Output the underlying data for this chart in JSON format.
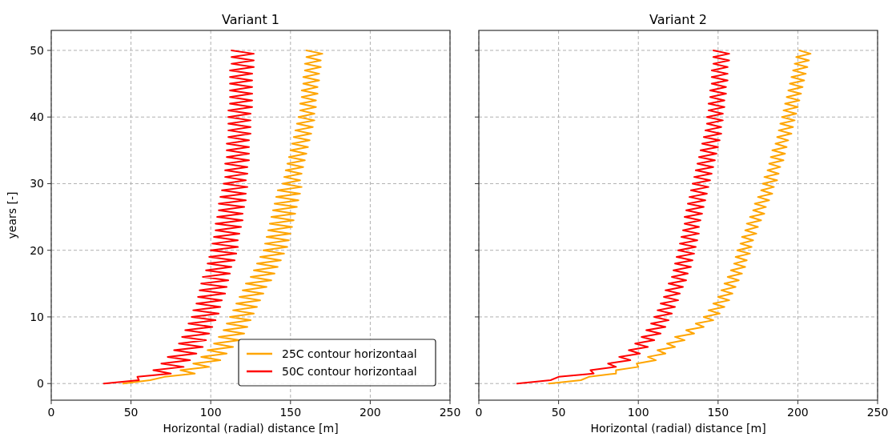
{
  "chart_data": [
    {
      "type": "line",
      "title": "Variant 1",
      "xlabel": "Horizontal (radial) distance [m]",
      "ylabel": "years [-]",
      "xlim": [
        0,
        250
      ],
      "xticks": [
        0,
        50,
        100,
        150,
        200,
        250
      ],
      "ylim": [
        -2.5,
        53
      ],
      "yticks": [
        0,
        10,
        20,
        30,
        40,
        50
      ],
      "grid": true,
      "legend": "bottom right",
      "series": [
        {
          "name": "25C contour horizontaal",
          "color": "#ffa500",
          "x": [
            45,
            62,
            71,
            90,
            81,
            99,
            89,
            106,
            94,
            110,
            98,
            114,
            102,
            118,
            105,
            121,
            108,
            123,
            110,
            125,
            112,
            127,
            114,
            129,
            116,
            131,
            118,
            133,
            120,
            135,
            122,
            138,
            125,
            140,
            127,
            142,
            129,
            144,
            131,
            146,
            133,
            148,
            134,
            149,
            135,
            150,
            136,
            151,
            137,
            152,
            138,
            153,
            139,
            154,
            140,
            155,
            141,
            156,
            142,
            157,
            145,
            156,
            146,
            157,
            147,
            158,
            148,
            159,
            149,
            160,
            150,
            161,
            151,
            162,
            152,
            163,
            153,
            164,
            154,
            165,
            155,
            165,
            156,
            166,
            156,
            166,
            157,
            167,
            157,
            167,
            158,
            168,
            158,
            168,
            159,
            169,
            159,
            169,
            160,
            170,
            160
          ],
          "values": [
            0,
            0.5,
            1,
            1.5,
            2,
            2.5,
            3,
            3.5,
            4,
            4.5,
            5,
            5.5,
            6,
            6.5,
            7,
            7.5,
            8,
            8.5,
            9,
            9.5,
            10,
            10.5,
            11,
            11.5,
            12,
            12.5,
            13,
            13.5,
            14,
            14.5,
            15,
            15.5,
            16,
            16.5,
            17,
            17.5,
            18,
            18.5,
            19,
            19.5,
            20,
            20.5,
            21,
            21.5,
            22,
            22.5,
            23,
            23.5,
            24,
            24.5,
            25,
            25.5,
            26,
            26.5,
            27,
            27.5,
            28,
            28.5,
            29,
            29.5,
            30,
            30.5,
            31,
            31.5,
            32,
            32.5,
            33,
            33.5,
            34,
            34.5,
            35,
            35.5,
            36,
            36.5,
            37,
            37.5,
            38,
            38.5,
            39,
            39.5,
            40,
            40.5,
            41,
            41.5,
            42,
            42.5,
            43,
            43.5,
            44,
            44.5,
            45,
            45.5,
            46,
            46.5,
            47,
            47.5,
            48,
            48.5,
            49,
            49.5,
            50
          ]
        },
        {
          "name": "50C contour horizontaal",
          "color": "#ff0000",
          "x": [
            33,
            55,
            54,
            75,
            64,
            83,
            69,
            87,
            73,
            91,
            77,
            95,
            80,
            97,
            82,
            99,
            84,
            101,
            86,
            103,
            88,
            105,
            89,
            106,
            91,
            107,
            92,
            109,
            93,
            110,
            94,
            111,
            95,
            112,
            97,
            113,
            98,
            115,
            99,
            116,
            100,
            117,
            101,
            117,
            102,
            118,
            103,
            119,
            103,
            120,
            104,
            120,
            105,
            121,
            105,
            122,
            106,
            122,
            107,
            123,
            108,
            122,
            109,
            123,
            109,
            123,
            109,
            124,
            110,
            124,
            110,
            124,
            110,
            124,
            111,
            125,
            111,
            125,
            111,
            125,
            111,
            125,
            111,
            126,
            112,
            126,
            112,
            126,
            112,
            126,
            112,
            126,
            112,
            126,
            112,
            127,
            113,
            127,
            113,
            127,
            113
          ],
          "values": [
            0,
            0.5,
            1,
            1.5,
            2,
            2.5,
            3,
            3.5,
            4,
            4.5,
            5,
            5.5,
            6,
            6.5,
            7,
            7.5,
            8,
            8.5,
            9,
            9.5,
            10,
            10.5,
            11,
            11.5,
            12,
            12.5,
            13,
            13.5,
            14,
            14.5,
            15,
            15.5,
            16,
            16.5,
            17,
            17.5,
            18,
            18.5,
            19,
            19.5,
            20,
            20.5,
            21,
            21.5,
            22,
            22.5,
            23,
            23.5,
            24,
            24.5,
            25,
            25.5,
            26,
            26.5,
            27,
            27.5,
            28,
            28.5,
            29,
            29.5,
            30,
            30.5,
            31,
            31.5,
            32,
            32.5,
            33,
            33.5,
            34,
            34.5,
            35,
            35.5,
            36,
            36.5,
            37,
            37.5,
            38,
            38.5,
            39,
            39.5,
            40,
            40.5,
            41,
            41.5,
            42,
            42.5,
            43,
            43.5,
            44,
            44.5,
            45,
            45.5,
            46,
            46.5,
            47,
            47.5,
            48,
            48.5,
            49,
            49.5,
            50
          ]
        }
      ]
    },
    {
      "type": "line",
      "title": "Variant 2",
      "xlabel": "Horizontal (radial) distance [m]",
      "xlim": [
        0,
        250
      ],
      "xticks": [
        0,
        50,
        100,
        150,
        200,
        250
      ],
      "ylim": [
        -2.5,
        53
      ],
      "yticks": [
        0,
        10,
        20,
        30,
        40,
        50
      ],
      "grid": true,
      "tick_labels": "x",
      "series": [
        {
          "color": "#ffa500",
          "x": [
            44,
            64,
            69,
            86,
            86,
            100,
            99,
            111,
            106,
            117,
            112,
            123,
            118,
            129,
            123,
            135,
            130,
            141,
            136,
            147,
            141,
            151,
            144,
            154,
            147,
            157,
            150,
            159,
            152,
            161,
            154,
            163,
            156,
            165,
            158,
            167,
            160,
            168,
            161,
            170,
            162,
            171,
            164,
            172,
            165,
            174,
            167,
            175,
            168,
            177,
            170,
            179,
            172,
            180,
            173,
            182,
            175,
            184,
            177,
            185,
            178,
            187,
            179,
            188,
            181,
            189,
            182,
            191,
            183,
            192,
            184,
            193,
            186,
            194,
            187,
            196,
            188,
            197,
            189,
            198,
            190,
            199,
            191,
            200,
            192,
            201,
            193,
            202,
            194,
            203,
            195,
            204,
            196,
            205,
            197,
            206,
            198,
            207,
            199,
            208,
            201
          ],
          "values": [
            0,
            0.5,
            1,
            1.5,
            2,
            2.5,
            3,
            3.5,
            4,
            4.5,
            5,
            5.5,
            6,
            6.5,
            7,
            7.5,
            8,
            8.5,
            9,
            9.5,
            10,
            10.5,
            11,
            11.5,
            12,
            12.5,
            13,
            13.5,
            14,
            14.5,
            15,
            15.5,
            16,
            16.5,
            17,
            17.5,
            18,
            18.5,
            19,
            19.5,
            20,
            20.5,
            21,
            21.5,
            22,
            22.5,
            23,
            23.5,
            24,
            24.5,
            25,
            25.5,
            26,
            26.5,
            27,
            27.5,
            28,
            28.5,
            29,
            29.5,
            30,
            30.5,
            31,
            31.5,
            32,
            32.5,
            33,
            33.5,
            34,
            34.5,
            35,
            35.5,
            36,
            36.5,
            37,
            37.5,
            38,
            38.5,
            39,
            39.5,
            40,
            40.5,
            41,
            41.5,
            42,
            42.5,
            43,
            43.5,
            44,
            44.5,
            45,
            45.5,
            46,
            46.5,
            47,
            47.5,
            48,
            48.5,
            49,
            49.5,
            50
          ]
        },
        {
          "color": "#ff0000",
          "x": [
            24,
            45,
            50,
            72,
            70,
            86,
            81,
            95,
            88,
            101,
            94,
            106,
            98,
            110,
            102,
            114,
            105,
            117,
            108,
            119,
            110,
            121,
            112,
            123,
            114,
            125,
            116,
            126,
            117,
            128,
            119,
            130,
            121,
            131,
            122,
            133,
            123,
            134,
            124,
            135,
            125,
            136,
            126,
            137,
            127,
            138,
            128,
            138,
            129,
            139,
            129,
            140,
            130,
            141,
            131,
            142,
            132,
            143,
            133,
            144,
            134,
            145,
            135,
            146,
            136,
            147,
            137,
            148,
            138,
            149,
            139,
            150,
            140,
            151,
            141,
            152,
            142,
            152,
            143,
            153,
            143,
            153,
            144,
            154,
            144,
            154,
            145,
            155,
            145,
            155,
            146,
            156,
            146,
            156,
            146,
            156,
            147,
            157,
            147,
            157,
            147
          ],
          "values": [
            0,
            0.5,
            1,
            1.5,
            2,
            2.5,
            3,
            3.5,
            4,
            4.5,
            5,
            5.5,
            6,
            6.5,
            7,
            7.5,
            8,
            8.5,
            9,
            9.5,
            10,
            10.5,
            11,
            11.5,
            12,
            12.5,
            13,
            13.5,
            14,
            14.5,
            15,
            15.5,
            16,
            16.5,
            17,
            17.5,
            18,
            18.5,
            19,
            19.5,
            20,
            20.5,
            21,
            21.5,
            22,
            22.5,
            23,
            23.5,
            24,
            24.5,
            25,
            25.5,
            26,
            26.5,
            27,
            27.5,
            28,
            28.5,
            29,
            29.5,
            30,
            30.5,
            31,
            31.5,
            32,
            32.5,
            33,
            33.5,
            34,
            34.5,
            35,
            35.5,
            36,
            36.5,
            37,
            37.5,
            38,
            38.5,
            39,
            39.5,
            40,
            40.5,
            41,
            41.5,
            42,
            42.5,
            43,
            43.5,
            44,
            44.5,
            45,
            45.5,
            46,
            46.5,
            47,
            47.5,
            48,
            48.5,
            49,
            49.5,
            50
          ]
        }
      ]
    }
  ]
}
